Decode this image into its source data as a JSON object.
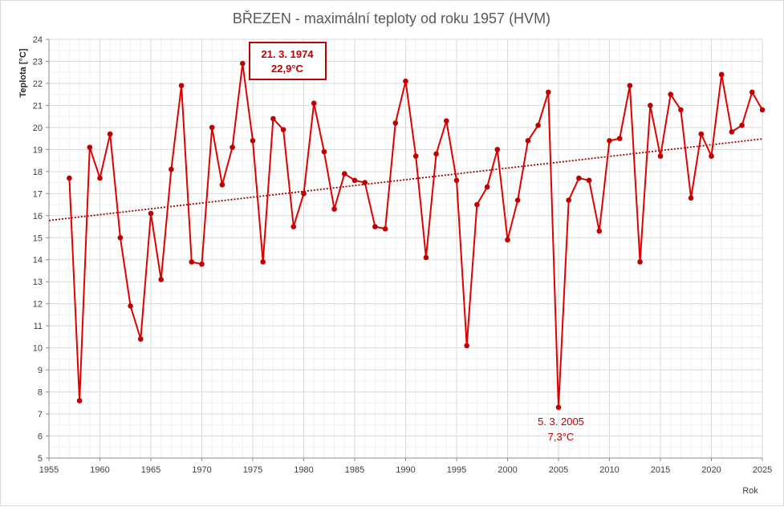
{
  "chart_data": {
    "type": "line",
    "title": "BŘEZEN - maximální teploty od roku 1957 (HVM)",
    "xlabel": "Rok",
    "ylabel": "Teplota [°C]",
    "xlim": [
      1955,
      2025
    ],
    "ylim": [
      5,
      24
    ],
    "x_ticks": [
      1955,
      1960,
      1965,
      1970,
      1975,
      1980,
      1985,
      1990,
      1995,
      2000,
      2005,
      2010,
      2015,
      2020,
      2025
    ],
    "y_ticks": [
      5,
      6,
      7,
      8,
      9,
      10,
      11,
      12,
      13,
      14,
      15,
      16,
      17,
      18,
      19,
      20,
      21,
      22,
      23,
      24
    ],
    "grid": true,
    "series": [
      {
        "color": "#e00000",
        "marker_color": "#c00000",
        "x": [
          1957,
          1958,
          1959,
          1960,
          1961,
          1962,
          1963,
          1964,
          1965,
          1966,
          1967,
          1968,
          1969,
          1970,
          1971,
          1972,
          1973,
          1974,
          1975,
          1976,
          1977,
          1978,
          1979,
          1980,
          1981,
          1982,
          1983,
          1984,
          1985,
          1986,
          1987,
          1988,
          1989,
          1990,
          1991,
          1992,
          1993,
          1994,
          1995,
          1996,
          1997,
          1998,
          1999,
          2000,
          2001,
          2002,
          2003,
          2004,
          2005,
          2006,
          2007,
          2008,
          2009,
          2010,
          2011,
          2012,
          2013,
          2014,
          2015,
          2016,
          2017,
          2018,
          2019,
          2020,
          2021,
          2022,
          2023,
          2024,
          2025
        ],
        "y": [
          17.7,
          7.6,
          19.1,
          17.7,
          19.7,
          15.0,
          11.9,
          10.4,
          16.1,
          13.1,
          18.1,
          21.9,
          13.9,
          13.8,
          20.0,
          17.4,
          19.1,
          22.9,
          19.4,
          13.9,
          20.4,
          19.9,
          15.5,
          17.0,
          21.1,
          18.9,
          16.3,
          17.9,
          17.6,
          17.5,
          15.5,
          15.4,
          20.2,
          22.1,
          18.7,
          14.1,
          18.8,
          20.3,
          17.6,
          10.1,
          16.5,
          17.3,
          19.0,
          14.9,
          16.7,
          19.4,
          20.1,
          21.6,
          7.3,
          16.7,
          17.7,
          17.6,
          15.3,
          19.4,
          19.5,
          21.9,
          13.9,
          21.0,
          18.7,
          21.5,
          20.8,
          16.8,
          19.7,
          18.7,
          22.4,
          19.8,
          20.1,
          21.6,
          20.8
        ]
      }
    ],
    "trendline": {
      "style": "dotted",
      "color": "#a00000",
      "x": [
        1955,
        2025
      ],
      "y": [
        15.78,
        19.48
      ]
    },
    "annotations": [
      {
        "line1": "21. 3. 1974",
        "line2": "22,9°C",
        "boxed": true
      },
      {
        "line1": "5. 3. 2005",
        "line2": "7,3°C",
        "boxed": false
      }
    ]
  }
}
